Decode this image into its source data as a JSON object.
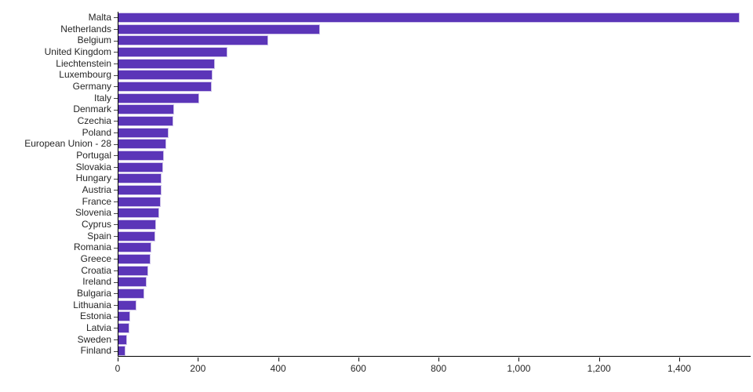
{
  "chart_data": {
    "type": "bar",
    "orientation": "horizontal",
    "title": "",
    "xlabel": "",
    "ylabel": "",
    "grid": false,
    "legend": false,
    "xlim": [
      0,
      1578
    ],
    "x_ticks": [
      0,
      200,
      400,
      600,
      800,
      1000,
      1200,
      1400
    ],
    "x_tick_labels": [
      "0",
      "200",
      "400",
      "600",
      "800",
      "1,000",
      "1,200",
      "1,400"
    ],
    "categories": [
      "Malta",
      "Netherlands",
      "Belgium",
      "United Kingdom",
      "Liechtenstein",
      "Luxembourg",
      "Germany",
      "Italy",
      "Denmark",
      "Czechia",
      "Poland",
      "European Union - 28",
      "Portugal",
      "Slovakia",
      "Hungary",
      "Austria",
      "France",
      "Slovenia",
      "Cyprus",
      "Spain",
      "Romania",
      "Greece",
      "Croatia",
      "Ireland",
      "Bulgaria",
      "Lithuania",
      "Estonia",
      "Latvia",
      "Sweden",
      "Finland"
    ],
    "values": [
      1548,
      502,
      374,
      272,
      241,
      235,
      232,
      202,
      138,
      136,
      126,
      119,
      113,
      111,
      108,
      107,
      105,
      101,
      94,
      92,
      83,
      80,
      75,
      70,
      65,
      45,
      29,
      28,
      22,
      17
    ],
    "bar_color": "#5b35b8",
    "bar_stroke_color": "#cfc4ea",
    "axis_color": "#000000",
    "label_color": "#262626"
  }
}
